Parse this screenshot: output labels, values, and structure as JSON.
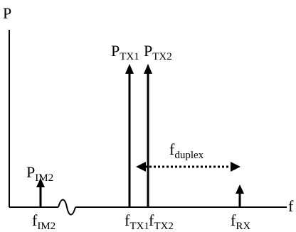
{
  "diagram": {
    "axes": {
      "y_label": "P",
      "x_label": "f"
    },
    "arrows": [
      {
        "id": "im2",
        "power_label": {
          "main": "P",
          "sub": "IM2"
        },
        "freq_label": {
          "main": "f",
          "sub": "IM2"
        }
      },
      {
        "id": "tx1",
        "power_label": {
          "main": "P",
          "sub": "TX1"
        },
        "freq_label": {
          "main": "f",
          "sub": "TX1"
        }
      },
      {
        "id": "tx2",
        "power_label": {
          "main": "P",
          "sub": "TX2"
        },
        "freq_label": {
          "main": "f",
          "sub": "TX2"
        }
      },
      {
        "id": "rx",
        "freq_label": {
          "main": "f",
          "sub": "RX"
        }
      }
    ],
    "duplex": {
      "label": {
        "main": "f",
        "sub": "duplex"
      }
    },
    "colors": {
      "stroke": "#000000",
      "background": "#ffffff"
    }
  }
}
